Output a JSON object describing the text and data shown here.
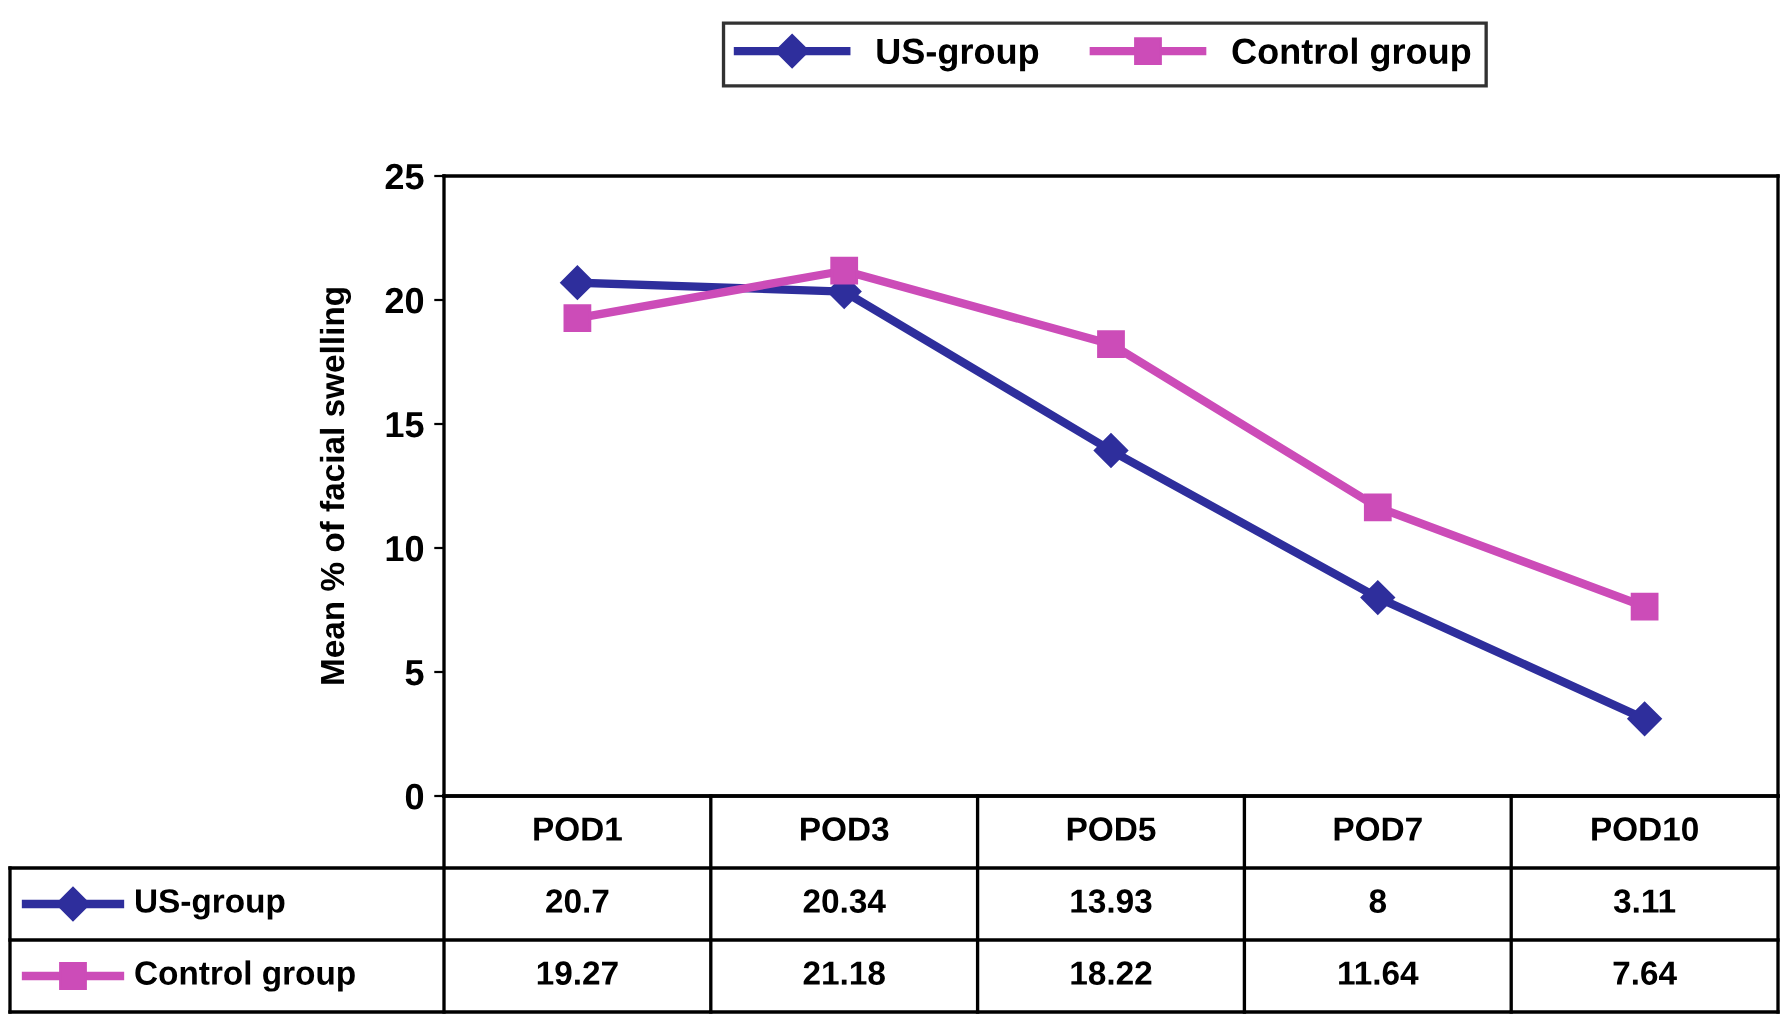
{
  "chart_data": {
    "type": "line",
    "ylabel": "Mean % of facial swelling",
    "categories": [
      "POD1",
      "POD3",
      "POD5",
      "POD7",
      "POD10"
    ],
    "series": [
      {
        "name": "US-group",
        "color": "#2e2e9c",
        "marker": "diamond",
        "values": [
          20.7,
          20.34,
          13.93,
          8,
          3.11
        ]
      },
      {
        "name": "Control group",
        "color": "#cc4cb8",
        "marker": "square",
        "values": [
          19.27,
          21.18,
          18.22,
          11.64,
          7.64
        ]
      }
    ],
    "ylim": [
      0,
      25
    ],
    "yticks": [
      0,
      5,
      10,
      15,
      20,
      25
    ],
    "grid": false,
    "legend": "top",
    "data_labels": true,
    "line_style": "solid"
  }
}
